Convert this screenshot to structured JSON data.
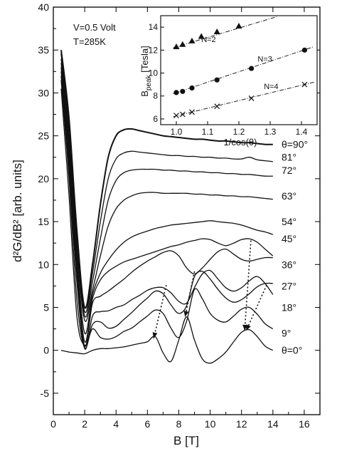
{
  "chart_data": [
    {
      "type": "line",
      "title": "",
      "xlabel": "B [T]",
      "ylabel": "d²G/dB² [arb. units]",
      "xlim": [
        0,
        17
      ],
      "ylim": [
        -7.5,
        40
      ],
      "xticks": [
        0,
        2,
        4,
        6,
        8,
        10,
        12,
        14,
        16
      ],
      "yticks": [
        -5,
        0,
        5,
        10,
        15,
        20,
        25,
        30,
        35,
        40
      ],
      "annotation_lines": [
        "V=0.5 Volt",
        "T=285K"
      ],
      "series": [
        {
          "name": "θ=0°",
          "label_y": 0.0,
          "x": [
            0.5,
            1,
            1.5,
            2,
            2.5,
            3,
            3.5,
            4,
            4.5,
            5,
            5.5,
            6,
            6.5,
            7,
            7.5,
            8,
            8.5,
            9,
            9.5,
            10,
            10.5,
            11,
            11.5,
            12,
            12.5,
            13,
            13.5,
            14
          ],
          "y": [
            0,
            -0.2,
            -0.3,
            -0.4,
            0,
            0.2,
            0.2,
            0.3,
            0.4,
            0.6,
            0.8,
            1.0,
            1.6,
            -0.3,
            -1.3,
            1.2,
            3.9,
            1.2,
            -1.0,
            -1.5,
            -1.0,
            -0.2,
            1.0,
            2.1,
            2.4,
            1.6,
            0.5,
            0.0
          ]
        },
        {
          "name": "9°",
          "label_y": 2.0,
          "x": [
            0.5,
            1,
            1.5,
            2,
            2.5,
            3,
            3.5,
            4,
            4.5,
            5,
            5.5,
            6,
            6.5,
            7,
            7.5,
            8,
            8.5,
            9,
            9.5,
            10,
            10.5,
            11,
            11.5,
            12,
            12.5,
            13,
            13.5,
            14
          ],
          "y": [
            30.5,
            18,
            4,
            0.6,
            2.5,
            1.5,
            1.3,
            1.6,
            2.2,
            2.6,
            3.3,
            4.0,
            4.7,
            4.3,
            2.6,
            1.5,
            3.4,
            7.1,
            6.0,
            4.3,
            3.5,
            3.3,
            4.0,
            4.8,
            5.0,
            4.2,
            3.1,
            2.5
          ]
        },
        {
          "name": "18°",
          "label_y": 5.0,
          "x": [
            0.5,
            1,
            1.5,
            2,
            2.5,
            3,
            3.5,
            4,
            4.5,
            5,
            5.5,
            6,
            6.5,
            7,
            7.5,
            8,
            8.5,
            9,
            9.5,
            10,
            10.5,
            11,
            11.5,
            12,
            12.5,
            13,
            13.5,
            14
          ],
          "y": [
            31.5,
            20,
            6,
            0.3,
            3.0,
            3.3,
            2.6,
            2.8,
            3.6,
            4.4,
            5.3,
            6.1,
            6.9,
            6.6,
            5.3,
            4.3,
            5.2,
            8.6,
            9.2,
            8.3,
            7.1,
            6.1,
            5.6,
            5.9,
            6.6,
            7.4,
            7.8,
            7.8
          ]
        },
        {
          "name": "27°",
          "label_y": 7.5,
          "x": [
            0.5,
            1,
            1.5,
            2,
            2.5,
            3,
            3.5,
            4,
            4.5,
            5,
            5.5,
            6,
            6.5,
            7,
            7.5,
            8,
            8.5,
            9,
            9.5,
            10,
            10.5,
            11,
            11.5,
            12,
            12.5,
            13,
            13.5,
            14
          ],
          "y": [
            32,
            21,
            8,
            0.2,
            4.0,
            4.5,
            4.6,
            5.0,
            5.3,
            5.9,
            6.4,
            7.0,
            7.3,
            7.3,
            6.7,
            5.7,
            5.5,
            7.3,
            8.9,
            9.3,
            8.3,
            7.3,
            6.9,
            7.3,
            8.1,
            8.6,
            7.8,
            6.5
          ]
        },
        {
          "name": "36°",
          "label_y": 10.0,
          "x": [
            0.5,
            1,
            1.5,
            2,
            2.5,
            3,
            3.5,
            4,
            4.5,
            5,
            5.5,
            6,
            6.5,
            7,
            7.5,
            8,
            8.5,
            9,
            9.5,
            10,
            10.5,
            11,
            11.5,
            12,
            12.5,
            13,
            13.5,
            14
          ],
          "y": [
            32.5,
            22,
            9,
            0.5,
            5.5,
            6.3,
            6.9,
            7.6,
            8.3,
            9.1,
            9.8,
            10.4,
            10.9,
            11.4,
            11.6,
            11.0,
            9.6,
            8.9,
            9.6,
            10.6,
            11.5,
            11.8,
            11.2,
            10.6,
            10.4,
            10.6,
            10.8,
            10.8
          ]
        },
        {
          "name": "45°",
          "label_y": 13.0,
          "x": [
            0.5,
            1,
            1.5,
            2,
            2.5,
            3,
            3.5,
            4,
            4.5,
            5,
            5.5,
            6,
            6.5,
            7,
            7.5,
            8,
            8.5,
            9,
            9.5,
            10,
            10.5,
            11,
            11.5,
            12,
            12.5,
            13,
            13.5,
            14
          ],
          "y": [
            33,
            23,
            10,
            1.0,
            6.0,
            8.2,
            9.2,
            9.8,
            10.3,
            10.6,
            10.9,
            11.2,
            11.5,
            11.8,
            12.1,
            12.3,
            12.6,
            12.8,
            13.0,
            12.9,
            12.5,
            12.2,
            12.5,
            12.9,
            13.0,
            12.6,
            11.8,
            11.0
          ]
        },
        {
          "name": "54°",
          "label_y": 15.0,
          "x": [
            0.5,
            1,
            1.5,
            2,
            2.5,
            3,
            3.5,
            4,
            4.5,
            5,
            5.5,
            6,
            6.5,
            7,
            7.5,
            8,
            8.5,
            9,
            9.5,
            10,
            10.5,
            11,
            11.5,
            12,
            12.5,
            13,
            13.5,
            14
          ],
          "y": [
            33.5,
            24,
            11,
            2.0,
            6.5,
            9.0,
            10.5,
            11.7,
            12.6,
            13.2,
            13.6,
            13.9,
            14.2,
            14.4,
            14.6,
            14.7,
            14.8,
            14.9,
            15.0,
            15.1,
            15.0,
            14.9,
            14.8,
            14.6,
            14.3,
            14.0,
            13.8,
            13.5
          ]
        },
        {
          "name": "63°",
          "label_y": 18.0,
          "x": [
            0.5,
            1,
            1.5,
            2,
            2.5,
            3,
            3.5,
            4,
            4.5,
            5,
            5.5,
            6,
            6.5,
            7,
            7.5,
            8,
            8.5,
            9,
            9.5,
            10,
            10.5,
            11,
            11.5,
            12,
            12.5,
            13,
            13.5,
            14
          ],
          "y": [
            34,
            25,
            12,
            3.5,
            7.0,
            11.0,
            14.5,
            16.5,
            17.5,
            18.0,
            18.3,
            18.4,
            18.4,
            18.3,
            18.3,
            18.3,
            18.3,
            18.2,
            18.2,
            18.1,
            18.1,
            18.0,
            18.0,
            17.9,
            17.9,
            17.8,
            17.7,
            17.6
          ]
        },
        {
          "name": "72°",
          "label_y": 21.0,
          "x": [
            0.5,
            1,
            1.5,
            2,
            2.5,
            3,
            3.5,
            4,
            4.5,
            5,
            5.5,
            6,
            6.5,
            7,
            7.5,
            8,
            8.5,
            9,
            9.5,
            10,
            10.5,
            11,
            11.5,
            12,
            12.5,
            13,
            13.5,
            14
          ],
          "y": [
            34.5,
            26,
            13,
            4.0,
            8.0,
            13.0,
            17.5,
            19.8,
            20.7,
            21.0,
            21.1,
            21.1,
            21.1,
            21.0,
            21.0,
            20.9,
            20.9,
            20.8,
            20.8,
            20.7,
            20.7,
            20.6,
            20.6,
            20.5,
            20.5,
            20.4,
            20.3,
            20.3
          ]
        },
        {
          "name": "81°",
          "label_y": 22.5,
          "x": [
            0.5,
            1,
            1.5,
            2,
            2.5,
            3,
            3.5,
            4,
            4.5,
            5,
            5.5,
            6,
            6.5,
            7,
            7.5,
            8,
            8.5,
            9,
            9.5,
            10,
            10.5,
            11,
            11.5,
            12,
            12.5,
            13,
            13.5,
            14
          ],
          "y": [
            34.7,
            26.5,
            13.5,
            4.5,
            9.0,
            15.0,
            20.0,
            22.3,
            23.0,
            23.2,
            23.1,
            23.0,
            22.9,
            22.8,
            22.7,
            22.7,
            22.6,
            22.6,
            22.5,
            22.5,
            22.4,
            22.4,
            22.3,
            22.3,
            22.5,
            22.2,
            22.1,
            22.0
          ]
        },
        {
          "name": "θ=90°",
          "label_y": 24.0,
          "x": [
            0.5,
            1,
            1.5,
            2,
            2.5,
            3,
            3.5,
            4,
            4.5,
            5,
            5.5,
            6,
            6.5,
            7,
            7.5,
            8,
            8.5,
            9,
            9.5,
            10,
            10.5,
            11,
            11.5,
            12,
            12.5,
            13,
            13.5,
            14
          ],
          "y": [
            35,
            27,
            14,
            5.0,
            10.0,
            17.0,
            22.5,
            25.0,
            25.7,
            25.8,
            25.6,
            25.4,
            25.2,
            25.0,
            24.9,
            24.8,
            24.7,
            24.6,
            24.6,
            24.5,
            24.4,
            24.4,
            24.3,
            24.2,
            24.2,
            24.1,
            24.0,
            24.0
          ]
        }
      ],
      "dotted_arrows": [
        {
          "x": [
            7.2,
            6.4
          ],
          "y": [
            7.6,
            1.4
          ]
        },
        {
          "x": [
            9.0,
            8.4
          ],
          "y": [
            9.2,
            3.9
          ]
        },
        {
          "x": [
            12.6,
            12.2
          ],
          "y": [
            12.8,
            2.3
          ]
        },
        {
          "x": [
            13.6,
            12.3
          ],
          "y": [
            7.6,
            2.3
          ]
        }
      ]
    },
    {
      "type": "scatter",
      "title": "",
      "xlabel": "1/cos(θ)",
      "ylabel": "B",
      "ylabel_sub": "peak",
      "ylabel_unit": " [Tesla]",
      "xlim": [
        0.95,
        1.45
      ],
      "ylim": [
        5.5,
        15
      ],
      "xticks": [
        1.0,
        1.1,
        1.2,
        1.3,
        1.4
      ],
      "xtick_labels": [
        "1.0",
        "1.1",
        "1.2",
        "1.3",
        "1.4"
      ],
      "yticks": [
        6,
        8,
        10,
        12,
        14
      ],
      "series": [
        {
          "name": "N=2",
          "marker": "triangle",
          "label_x": 1.08,
          "label_y": 12.7,
          "x": [
            1.0,
            1.02,
            1.05,
            1.08,
            1.13,
            1.2
          ],
          "y": [
            12.3,
            12.5,
            12.8,
            13.2,
            13.6,
            14.1
          ],
          "fit": [
            [
              0.99,
              12.2
            ],
            [
              1.32,
              14.9
            ]
          ]
        },
        {
          "name": "N=3",
          "marker": "circle",
          "label_x": 1.26,
          "label_y": 11.0,
          "x": [
            1.0,
            1.02,
            1.05,
            1.13,
            1.24,
            1.41
          ],
          "y": [
            8.3,
            8.4,
            8.7,
            9.4,
            10.4,
            12.0
          ],
          "fit": [
            [
              0.99,
              8.2
            ],
            [
              1.44,
              12.3
            ]
          ]
        },
        {
          "name": "N=4",
          "marker": "x",
          "label_x": 1.28,
          "label_y": 8.6,
          "x": [
            1.0,
            1.02,
            1.05,
            1.13,
            1.24,
            1.41
          ],
          "y": [
            6.3,
            6.4,
            6.6,
            7.1,
            7.8,
            9.0
          ],
          "fit": [
            [
              0.99,
              6.2
            ],
            [
              1.44,
              9.2
            ]
          ]
        }
      ]
    }
  ],
  "main_chart": {
    "xlabel": "B [T]",
    "ylabel": "d²G/dB² [arb. units]",
    "annotation_line1": "V=0.5 Volt",
    "annotation_line2": "T=285K"
  },
  "inset_chart": {
    "xlabel": "1/cos(θ)",
    "ylabel_main": "B",
    "ylabel_sub": "peak",
    "ylabel_unit": " [Tesla]"
  }
}
